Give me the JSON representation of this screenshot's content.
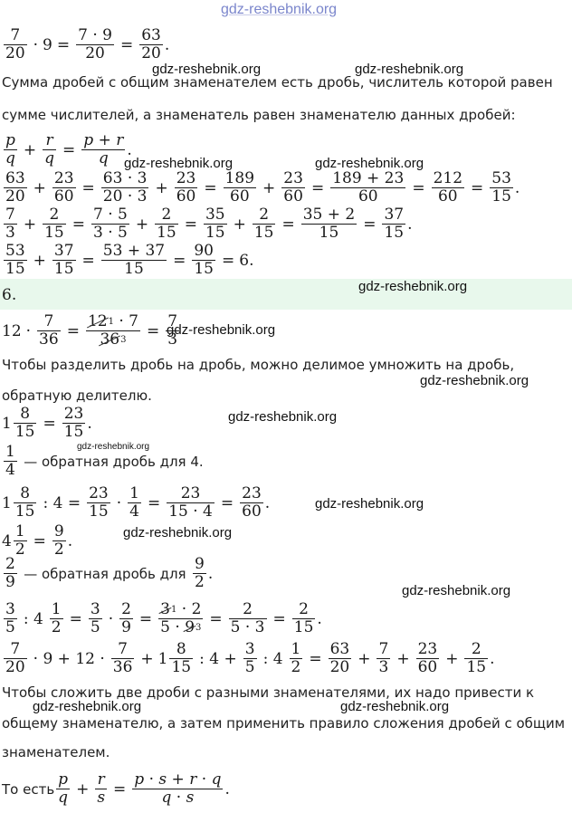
{
  "watermark": "gdz-reshebnik.org",
  "texts": {
    "t1": "Сумма дробей с общим знаменателем есть дробь, числитель которой равен",
    "t2": "сумме числителей, а знаменатель равен знаменателю данных дробей:",
    "section": "6.",
    "t3": "Чтобы разделить дробь на дробь, можно делимое умножить на дробь,",
    "t4": "обратную делителю.",
    "t5": "— обратная дробь для 4.",
    "t6": "— обратная дробь для",
    "t7": "Чтобы сложить две дроби с разными знаменателями, их надо привести к",
    "t8": "общему знаменателю, а затем применить правило сложения дробей с общим",
    "t9": "знаменателем.",
    "t10": "То есть"
  }
}
